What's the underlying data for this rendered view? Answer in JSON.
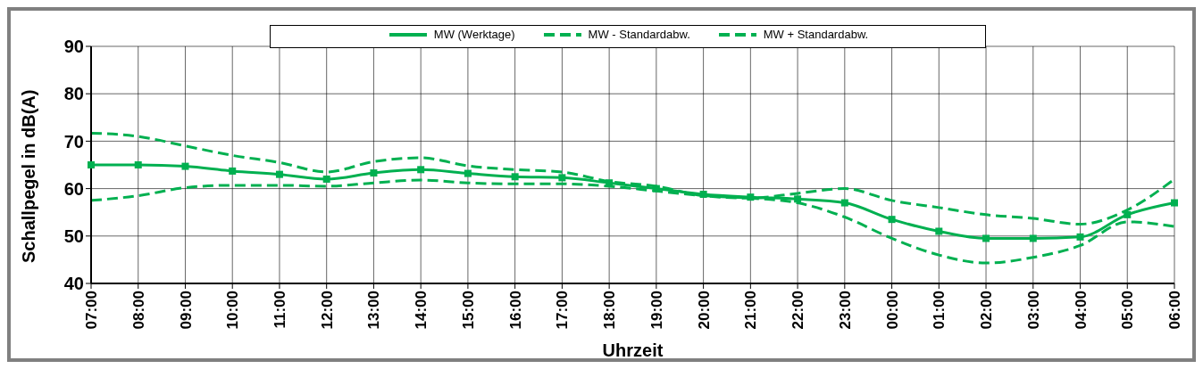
{
  "chart_data": {
    "type": "line",
    "xlabel": "Uhrzeit",
    "ylabel": "Schallpegel in dB(A)",
    "categories": [
      "07:00",
      "08:00",
      "09:00",
      "10:00",
      "11:00",
      "12:00",
      "13:00",
      "14:00",
      "15:00",
      "16:00",
      "17:00",
      "18:00",
      "19:00",
      "20:00",
      "21:00",
      "22:00",
      "23:00",
      "00:00",
      "01:00",
      "02:00",
      "03:00",
      "04:00",
      "05:00",
      "06:00"
    ],
    "series": [
      {
        "name": "MW (Werktage)",
        "color": "#00b050",
        "line_style": "solid",
        "marker": "square",
        "values": [
          65,
          65,
          64.7,
          63.7,
          63,
          62,
          63.3,
          64,
          63.2,
          62.5,
          62.3,
          61.2,
          60,
          58.8,
          58.2,
          57.8,
          57,
          53.5,
          51,
          49.5,
          49.5,
          49.8,
          54.5,
          57
        ]
      },
      {
        "name": "MW - Standardabw.",
        "color": "#00b050",
        "line_style": "dashed",
        "marker": "none",
        "values": [
          57.5,
          58.5,
          60.2,
          60.7,
          60.7,
          60.5,
          61.2,
          61.8,
          61.2,
          61,
          61,
          60.5,
          59.5,
          58.5,
          58,
          57,
          54,
          49.5,
          46,
          44.3,
          45.5,
          48,
          53,
          52
        ]
      },
      {
        "name": "MW + Standardabw.",
        "color": "#00b050",
        "line_style": "dashed",
        "marker": "none",
        "values": [
          71.7,
          71,
          69,
          67,
          65.5,
          63.5,
          65.7,
          66.5,
          64.8,
          64,
          63.5,
          61.5,
          60.5,
          58.5,
          58,
          59,
          60,
          57.5,
          56,
          54.5,
          53.7,
          52.5,
          55.5,
          62
        ]
      }
    ],
    "ylim": [
      40,
      90
    ],
    "yticks": [
      40,
      50,
      60,
      70,
      80,
      90
    ],
    "grid": true,
    "legend": "top"
  }
}
